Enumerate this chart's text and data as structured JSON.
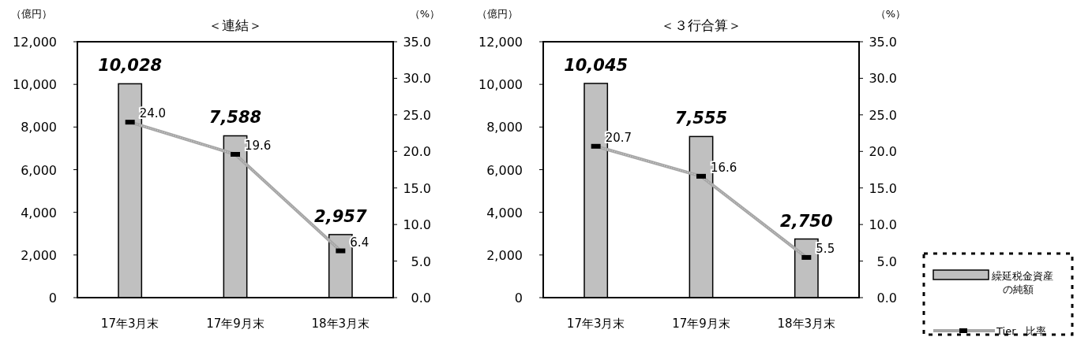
{
  "chart_data": [
    {
      "type": "bar",
      "title": "＜連結＞",
      "ylabel": "（億円）",
      "y2label": "（%）",
      "categories": [
        "17年3月末",
        "17年9月末",
        "18年3月末"
      ],
      "series": [
        {
          "color": "#c0c0c0",
          "values": [
            10028,
            7588,
            2957
          ],
          "value_labels": [
            "10,028",
            "7,588",
            "2,957"
          ]
        },
        {
          "type": "line",
          "axis": "y2",
          "color": "#a6a6a6",
          "marker": "square",
          "values": [
            24.0,
            19.6,
            6.4
          ],
          "value_labels": [
            "24.0",
            "19.6",
            "6.4"
          ]
        }
      ],
      "ylim": [
        0,
        12000
      ],
      "yticks": [
        {
          "value": 0,
          "label": "0"
        },
        {
          "value": 2000,
          "label": "2,000"
        },
        {
          "value": 4000,
          "label": "4,000"
        },
        {
          "value": 6000,
          "label": "6,000"
        },
        {
          "value": 8000,
          "label": "8,000"
        },
        {
          "value": 10000,
          "label": "10,000"
        },
        {
          "value": 12000,
          "label": "12,000"
        }
      ],
      "y2lim": [
        0,
        35
      ],
      "y2ticks": [
        {
          "value": 0,
          "label": "0.0"
        },
        {
          "value": 5,
          "label": "5.0"
        },
        {
          "value": 10,
          "label": "10.0"
        },
        {
          "value": 15,
          "label": "15.0"
        },
        {
          "value": 20,
          "label": "20.0"
        },
        {
          "value": 25,
          "label": "25.0"
        },
        {
          "value": 30,
          "label": "30.0"
        },
        {
          "value": 35,
          "label": "35.0"
        }
      ]
    },
    {
      "type": "bar",
      "title": "＜３行合算＞",
      "ylabel": "（億円）",
      "y2label": "（%）",
      "categories": [
        "17年3月末",
        "17年9月末",
        "18年3月末"
      ],
      "legend": "bottom right",
      "series": [
        {
          "name": "繰延税金資産の純額",
          "color": "#c0c0c0",
          "values": [
            10045,
            7555,
            2750
          ],
          "value_labels": [
            "10,045",
            "7,555",
            "2,750"
          ]
        },
        {
          "type": "line",
          "name": "Tier　比率",
          "axis": "y2",
          "color": "#a6a6a6",
          "marker": "square",
          "values": [
            20.7,
            16.6,
            5.5
          ],
          "value_labels": [
            "20.7",
            "16.6",
            "5.5"
          ]
        }
      ],
      "ylim": [
        0,
        12000
      ],
      "yticks": [
        {
          "value": 0,
          "label": "0"
        },
        {
          "value": 2000,
          "label": "2,000"
        },
        {
          "value": 4000,
          "label": "4,000"
        },
        {
          "value": 6000,
          "label": "6,000"
        },
        {
          "value": 8000,
          "label": "8,000"
        },
        {
          "value": 10000,
          "label": "10,000"
        },
        {
          "value": 12000,
          "label": "12,000"
        }
      ],
      "y2lim": [
        0,
        35
      ],
      "y2ticks": [
        {
          "value": 0,
          "label": "0.0"
        },
        {
          "value": 5,
          "label": "5.0"
        },
        {
          "value": 10,
          "label": "10.0"
        },
        {
          "value": 15,
          "label": "15.0"
        },
        {
          "value": 20,
          "label": "20.0"
        },
        {
          "value": 25,
          "label": "25.0"
        },
        {
          "value": 30,
          "label": "30.0"
        },
        {
          "value": 35,
          "label": "35.0"
        }
      ]
    }
  ]
}
